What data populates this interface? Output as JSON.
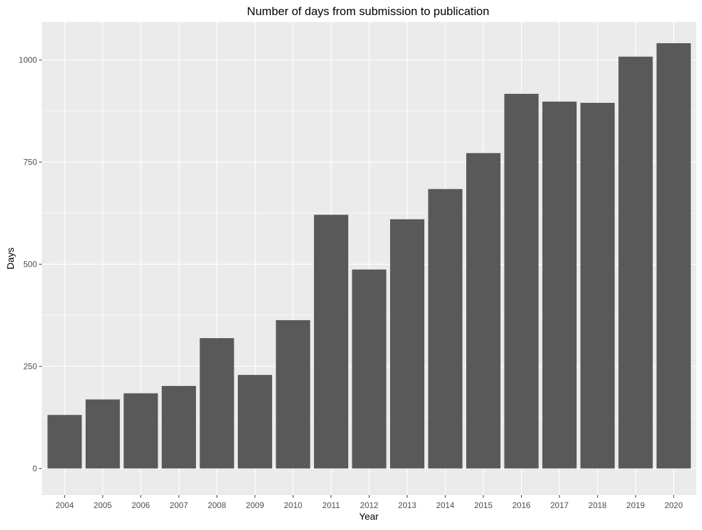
{
  "chart_data": {
    "type": "bar",
    "title": "Number of days from submission to publication",
    "xlabel": "Year",
    "ylabel": "Days",
    "categories": [
      "2004",
      "2005",
      "2006",
      "2007",
      "2008",
      "2009",
      "2010",
      "2011",
      "2012",
      "2013",
      "2014",
      "2015",
      "2016",
      "2017",
      "2018",
      "2019",
      "2020"
    ],
    "values": [
      131,
      169,
      184,
      202,
      319,
      229,
      363,
      621,
      487,
      610,
      684,
      772,
      917,
      898,
      895,
      1008,
      1041
    ],
    "ylim": [
      -65,
      1093
    ],
    "yticks": [
      0,
      250,
      500,
      750,
      1000
    ],
    "ytick_labels": [
      "0",
      "250",
      "500",
      "750",
      "1000"
    ],
    "grid": true,
    "legend": "none",
    "colors": {
      "bar": "#595959",
      "panel_background": "#ebebeb",
      "grid_line": "#ffffff"
    }
  }
}
